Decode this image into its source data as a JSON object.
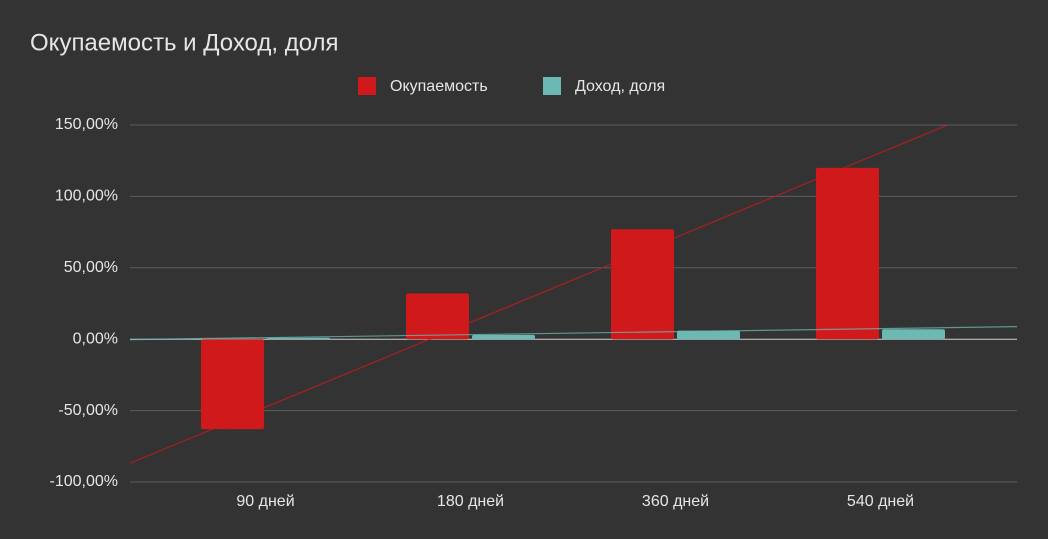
{
  "chart_data": {
    "type": "bar",
    "title": "Окупаемость и Доход, доля",
    "categories": [
      "90 дней",
      "180 дней",
      "360 дней",
      "540 дней"
    ],
    "series": [
      {
        "name": "Окупаемость",
        "color": "#d0191a",
        "values": [
          -63,
          32,
          77,
          120
        ]
      },
      {
        "name": "Доход, доля",
        "color": "#6cb8b3",
        "values": [
          1,
          3,
          6,
          7
        ]
      }
    ],
    "ylim": [
      -100,
      150
    ],
    "yticks": [
      {
        "value": -100,
        "label": "-100,00%"
      },
      {
        "value": -50,
        "label": "-50,00%"
      },
      {
        "value": 0,
        "label": "0,00%"
      },
      {
        "value": 50,
        "label": "50,00%"
      },
      {
        "value": 100,
        "label": "100,00%"
      },
      {
        "value": 150,
        "label": "150,00%"
      }
    ],
    "grid": true,
    "trendline": true,
    "legend": "top"
  }
}
